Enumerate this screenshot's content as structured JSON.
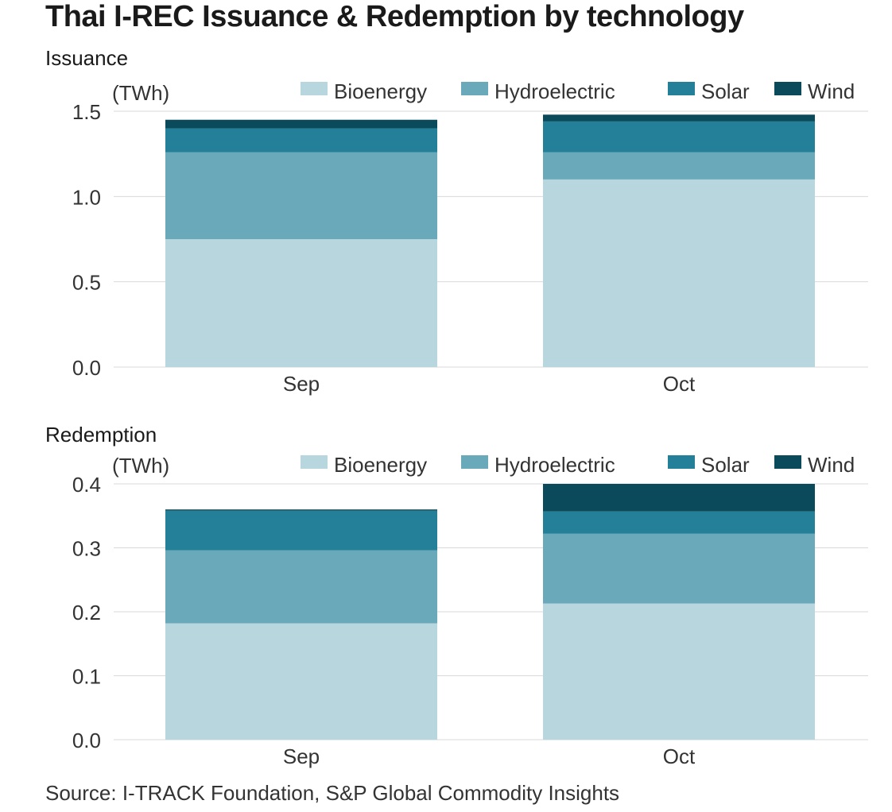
{
  "title": "Thai I-REC Issuance & Redemption by technology",
  "source": "Source: I-TRACK Foundation, S&P Global Commodity Insights",
  "colors": {
    "Bioenergy": "#b8d6de",
    "Hydroelectric": "#6aa9ba",
    "Solar": "#247f98",
    "Wind": "#0a4a5a"
  },
  "chart_data": [
    {
      "type": "bar",
      "stacked": true,
      "title": "Issuance",
      "ylabel": "(TWh)",
      "categories": [
        "Sep",
        "Oct"
      ],
      "ylim": [
        0,
        1.5
      ],
      "yticks": [
        0.0,
        0.5,
        1.0,
        1.5
      ],
      "ytick_labels": [
        "0.0",
        "0.5",
        "1.0",
        "1.5"
      ],
      "grid": true,
      "legend": "top-right",
      "series": [
        {
          "name": "Bioenergy",
          "values": [
            0.75,
            1.1
          ]
        },
        {
          "name": "Hydroelectric",
          "values": [
            0.51,
            0.16
          ]
        },
        {
          "name": "Solar",
          "values": [
            0.14,
            0.18
          ]
        },
        {
          "name": "Wind",
          "values": [
            0.05,
            0.04
          ]
        }
      ]
    },
    {
      "type": "bar",
      "stacked": true,
      "title": "Redemption",
      "ylabel": "(TWh)",
      "categories": [
        "Sep",
        "Oct"
      ],
      "ylim": [
        0,
        0.4
      ],
      "yticks": [
        0.0,
        0.1,
        0.2,
        0.3,
        0.4
      ],
      "ytick_labels": [
        "0.0",
        "0.1",
        "0.2",
        "0.3",
        "0.4"
      ],
      "grid": true,
      "legend": "top-right",
      "series": [
        {
          "name": "Bioenergy",
          "values": [
            0.182,
            0.213
          ]
        },
        {
          "name": "Hydroelectric",
          "values": [
            0.114,
            0.109
          ]
        },
        {
          "name": "Solar",
          "values": [
            0.062,
            0.035
          ]
        },
        {
          "name": "Wind",
          "values": [
            0.002,
            0.043
          ]
        }
      ]
    }
  ]
}
